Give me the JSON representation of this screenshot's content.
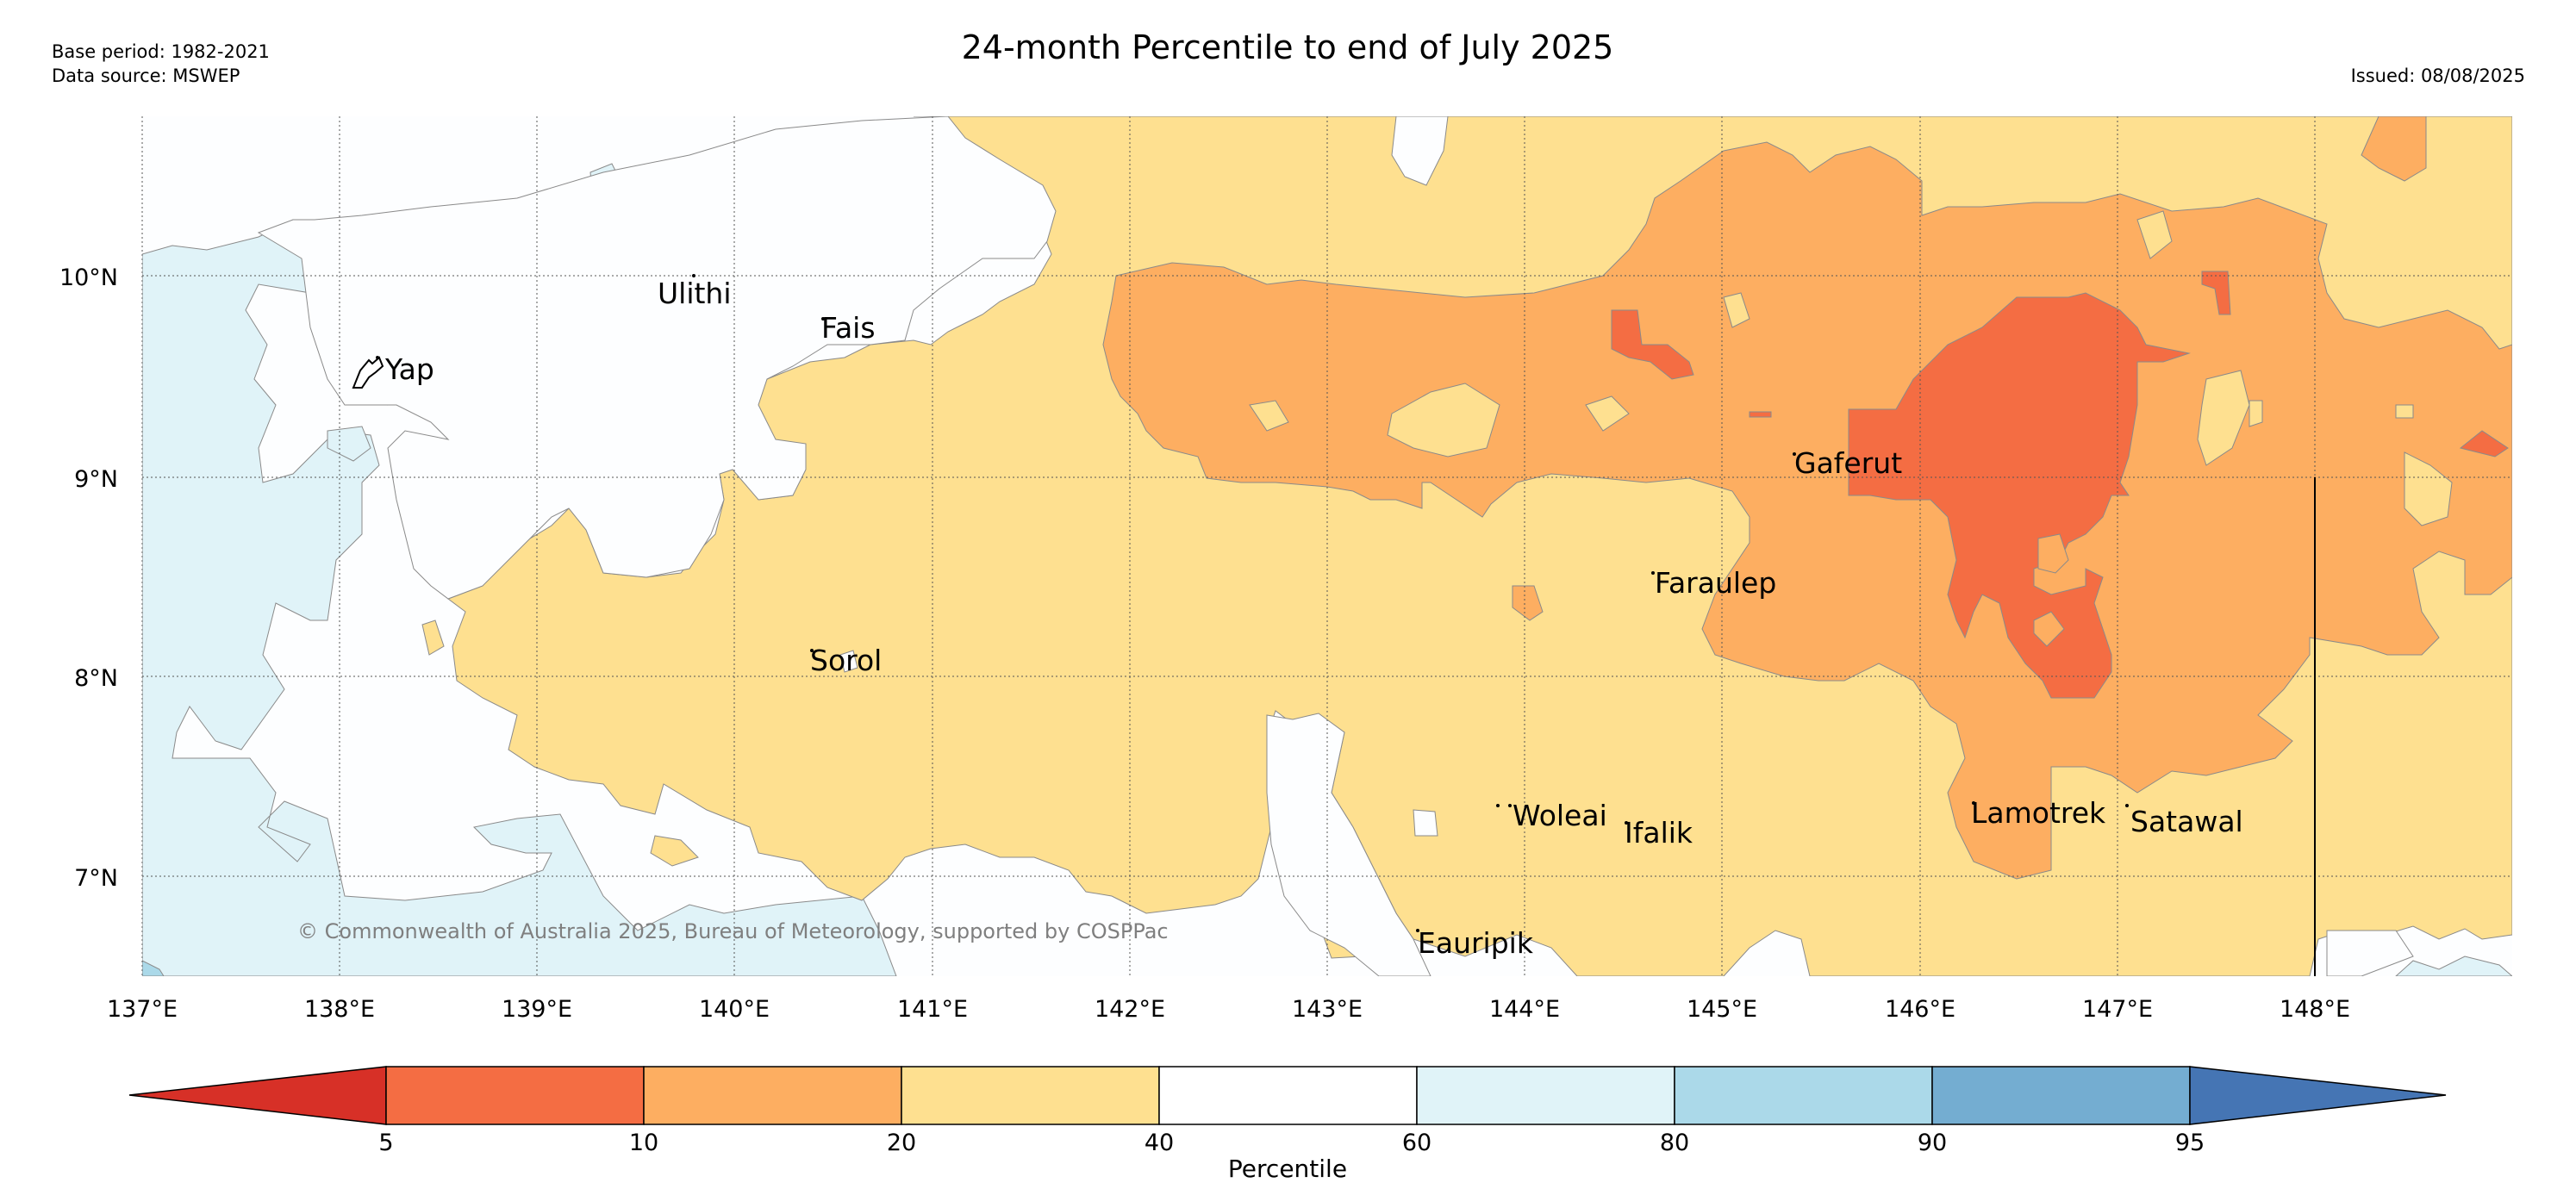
{
  "header": {
    "title": "24-month Percentile to end of July 2025",
    "base_period": "Base period: 1982-2021",
    "data_source": "Data source: MSWEP",
    "issued": "Issued: 08/08/2025"
  },
  "copyright": "© Commonwealth of Australia 2025, Bureau of Meteorology, supported by COSPPac",
  "axes": {
    "lon_labels": [
      "137°E",
      "138°E",
      "139°E",
      "140°E",
      "141°E",
      "142°E",
      "143°E",
      "144°E",
      "145°E",
      "146°E",
      "147°E",
      "148°E"
    ],
    "lat_labels": [
      "10°N",
      "9°N",
      "8°N",
      "7°N"
    ]
  },
  "places": [
    {
      "name": "Yap"
    },
    {
      "name": "Ulithi"
    },
    {
      "name": "Fais"
    },
    {
      "name": "Gaferut"
    },
    {
      "name": "Faraulep"
    },
    {
      "name": "Sorol"
    },
    {
      "name": "Woleai"
    },
    {
      "name": "Ifalik"
    },
    {
      "name": "Lamotrek"
    },
    {
      "name": "Satawal"
    },
    {
      "name": "Eauripik"
    }
  ],
  "colorbar": {
    "label": "Percentile",
    "ticks": [
      "5",
      "10",
      "20",
      "40",
      "60",
      "80",
      "90",
      "95"
    ],
    "colors": {
      "below_5": "#d73027",
      "p5_10": "#f46d43",
      "p10_20": "#fdae61",
      "p20_40": "#fee090",
      "p40_60": "#ffffff",
      "p60_80": "#e0f3f8",
      "p80_90": "#abd9e9",
      "p90_95": "#74add1",
      "above_95": "#4575b4"
    }
  }
}
